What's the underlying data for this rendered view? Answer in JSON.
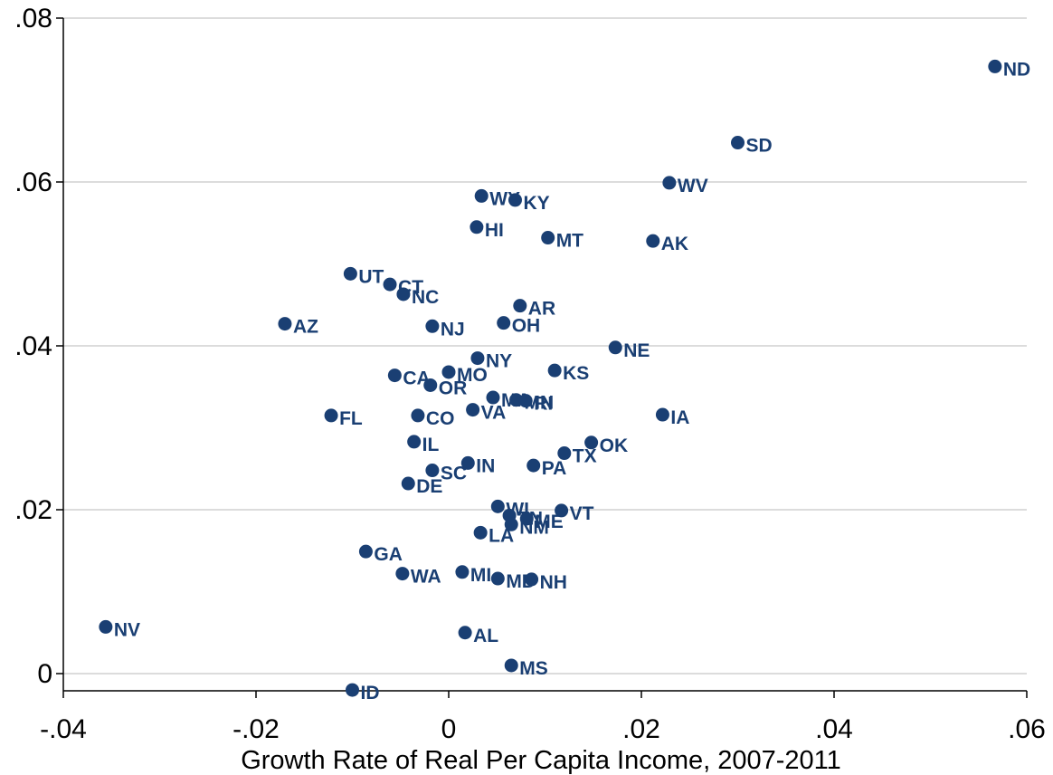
{
  "chart_data": {
    "type": "scatter",
    "xlabel": "Growth Rate of Real Per Capita Income, 2007-2011",
    "ylabel": "",
    "xlim": [
      -0.04,
      0.06
    ],
    "ylim": [
      -0.002,
      0.08
    ],
    "x_ticks": [
      -0.04,
      -0.02,
      0,
      0.02,
      0.04,
      0.06
    ],
    "x_tick_labels": [
      "-.04",
      "-.02",
      "0",
      ".02",
      ".04",
      ".06"
    ],
    "y_ticks": [
      0,
      0.02,
      0.04,
      0.06,
      0.08
    ],
    "y_tick_labels": [
      "0",
      ".02",
      ".04",
      ".06",
      ".08"
    ],
    "grid": "horizontal",
    "marker_color": "#1a3f73",
    "points": [
      {
        "label": "ND",
        "x": 0.0567,
        "y": 0.0741
      },
      {
        "label": "SD",
        "x": 0.03,
        "y": 0.0648
      },
      {
        "label": "WV",
        "x": 0.0229,
        "y": 0.0599
      },
      {
        "label": "AK",
        "x": 0.0212,
        "y": 0.0528
      },
      {
        "label": "WY",
        "x": 0.0034,
        "y": 0.0583
      },
      {
        "label": "KY",
        "x": 0.0069,
        "y": 0.0578
      },
      {
        "label": "HI",
        "x": 0.0029,
        "y": 0.0545
      },
      {
        "label": "MT",
        "x": 0.0103,
        "y": 0.0532
      },
      {
        "label": "UT",
        "x": -0.0102,
        "y": 0.0488
      },
      {
        "label": "CT",
        "x": -0.0061,
        "y": 0.0475
      },
      {
        "label": "NC",
        "x": -0.0047,
        "y": 0.0463
      },
      {
        "label": "AR",
        "x": 0.0074,
        "y": 0.0449
      },
      {
        "label": "AZ",
        "x": -0.017,
        "y": 0.0427
      },
      {
        "label": "NJ",
        "x": -0.0017,
        "y": 0.0424
      },
      {
        "label": "OH",
        "x": 0.0057,
        "y": 0.0428
      },
      {
        "label": "NE",
        "x": 0.0173,
        "y": 0.0398
      },
      {
        "label": "NY",
        "x": 0.003,
        "y": 0.0385
      },
      {
        "label": "KS",
        "x": 0.011,
        "y": 0.037
      },
      {
        "label": "CA",
        "x": -0.0056,
        "y": 0.0364
      },
      {
        "label": "MO",
        "x": 0.0,
        "y": 0.0368
      },
      {
        "label": "OR",
        "x": -0.0019,
        "y": 0.0352
      },
      {
        "label": "MA",
        "x": 0.0046,
        "y": 0.0337
      },
      {
        "label": "MN",
        "x": 0.007,
        "y": 0.0334
      },
      {
        "label": "RI",
        "x": 0.008,
        "y": 0.0333
      },
      {
        "label": "VA",
        "x": 0.0025,
        "y": 0.0322
      },
      {
        "label": "FL",
        "x": -0.0122,
        "y": 0.0315
      },
      {
        "label": "CO",
        "x": -0.0032,
        "y": 0.0315
      },
      {
        "label": "IA",
        "x": 0.0222,
        "y": 0.0316
      },
      {
        "label": "IL",
        "x": -0.0036,
        "y": 0.0283
      },
      {
        "label": "OK",
        "x": 0.0148,
        "y": 0.0282
      },
      {
        "label": "TX",
        "x": 0.012,
        "y": 0.0269
      },
      {
        "label": "IN",
        "x": 0.002,
        "y": 0.0257
      },
      {
        "label": "PA",
        "x": 0.0088,
        "y": 0.0254
      },
      {
        "label": "SC",
        "x": -0.0017,
        "y": 0.0248
      },
      {
        "label": "DE",
        "x": -0.0042,
        "y": 0.0232
      },
      {
        "label": "WI",
        "x": 0.0051,
        "y": 0.0204
      },
      {
        "label": "VT",
        "x": 0.0117,
        "y": 0.0199
      },
      {
        "label": "TN",
        "x": 0.0063,
        "y": 0.0193
      },
      {
        "label": "ME",
        "x": 0.0081,
        "y": 0.0189
      },
      {
        "label": "NM",
        "x": 0.0065,
        "y": 0.0182
      },
      {
        "label": "LA",
        "x": 0.0033,
        "y": 0.0172
      },
      {
        "label": "GA",
        "x": -0.0086,
        "y": 0.0149
      },
      {
        "label": "WA",
        "x": -0.0048,
        "y": 0.0122
      },
      {
        "label": "MI",
        "x": 0.0014,
        "y": 0.0124
      },
      {
        "label": "MD",
        "x": 0.0051,
        "y": 0.0116
      },
      {
        "label": "NH",
        "x": 0.0086,
        "y": 0.0115
      },
      {
        "label": "NV",
        "x": -0.0356,
        "y": 0.0057
      },
      {
        "label": "AL",
        "x": 0.0017,
        "y": 0.005
      },
      {
        "label": "MS",
        "x": 0.0065,
        "y": 0.001
      },
      {
        "label": "ID",
        "x": -0.01,
        "y": -0.002
      }
    ]
  }
}
